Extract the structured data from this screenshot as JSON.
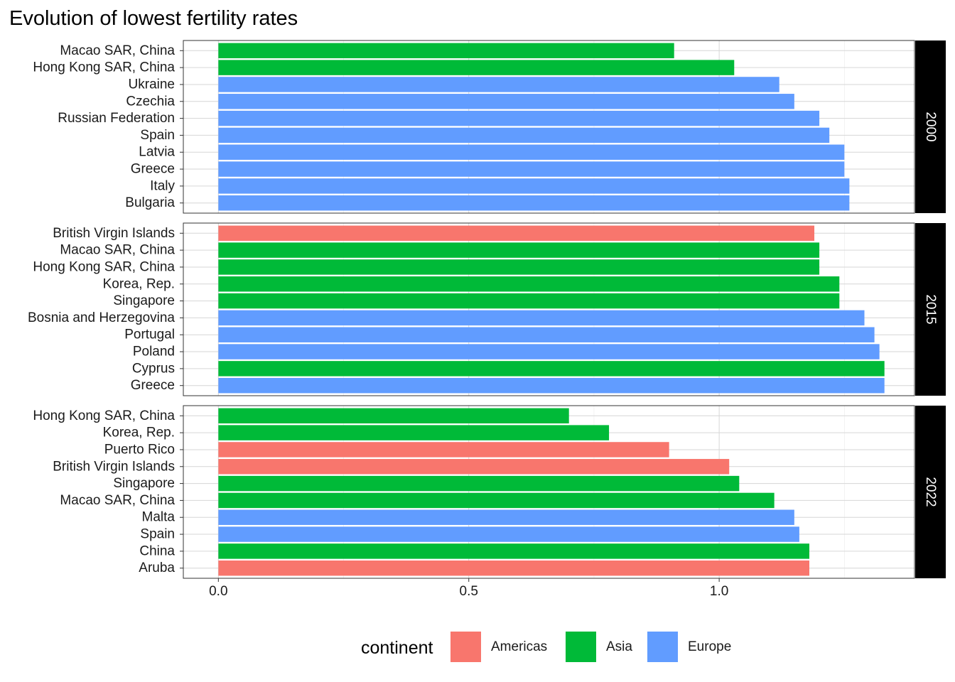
{
  "chart_data": {
    "type": "bar",
    "title": "Evolution of lowest fertility rates",
    "xlim": [
      -0.07,
      1.39
    ],
    "x_ticks": [
      0.0,
      0.5,
      1.0
    ],
    "x_tick_labels": [
      "0.0",
      "0.5",
      "1.0"
    ],
    "xlabel": "",
    "ylabel": "",
    "grid": true,
    "legend": {
      "title": "continent",
      "position": "bottom",
      "entries": [
        {
          "name": "Americas",
          "color": "#F8766D"
        },
        {
          "name": "Asia",
          "color": "#00BA38"
        },
        {
          "name": "Europe",
          "color": "#619CFF"
        }
      ]
    },
    "facets": [
      {
        "label": "2000",
        "bars": [
          {
            "country": "Macao SAR, China",
            "value": 0.91,
            "continent": "Asia"
          },
          {
            "country": "Hong Kong SAR, China",
            "value": 1.03,
            "continent": "Asia"
          },
          {
            "country": "Ukraine",
            "value": 1.12,
            "continent": "Europe"
          },
          {
            "country": "Czechia",
            "value": 1.15,
            "continent": "Europe"
          },
          {
            "country": "Russian Federation",
            "value": 1.2,
            "continent": "Europe"
          },
          {
            "country": "Spain",
            "value": 1.22,
            "continent": "Europe"
          },
          {
            "country": "Latvia",
            "value": 1.25,
            "continent": "Europe"
          },
          {
            "country": "Greece",
            "value": 1.25,
            "continent": "Europe"
          },
          {
            "country": "Italy",
            "value": 1.26,
            "continent": "Europe"
          },
          {
            "country": "Bulgaria",
            "value": 1.26,
            "continent": "Europe"
          }
        ]
      },
      {
        "label": "2015",
        "bars": [
          {
            "country": "British Virgin Islands",
            "value": 1.19,
            "continent": "Americas"
          },
          {
            "country": "Macao SAR, China",
            "value": 1.2,
            "continent": "Asia"
          },
          {
            "country": "Hong Kong SAR, China",
            "value": 1.2,
            "continent": "Asia"
          },
          {
            "country": "Korea, Rep.",
            "value": 1.24,
            "continent": "Asia"
          },
          {
            "country": "Singapore",
            "value": 1.24,
            "continent": "Asia"
          },
          {
            "country": "Bosnia and Herzegovina",
            "value": 1.29,
            "continent": "Europe"
          },
          {
            "country": "Portugal",
            "value": 1.31,
            "continent": "Europe"
          },
          {
            "country": "Poland",
            "value": 1.32,
            "continent": "Europe"
          },
          {
            "country": "Cyprus",
            "value": 1.33,
            "continent": "Asia"
          },
          {
            "country": "Greece",
            "value": 1.33,
            "continent": "Europe"
          }
        ]
      },
      {
        "label": "2022",
        "bars": [
          {
            "country": "Hong Kong SAR, China",
            "value": 0.7,
            "continent": "Asia"
          },
          {
            "country": "Korea, Rep.",
            "value": 0.78,
            "continent": "Asia"
          },
          {
            "country": "Puerto Rico",
            "value": 0.9,
            "continent": "Americas"
          },
          {
            "country": "British Virgin Islands",
            "value": 1.02,
            "continent": "Americas"
          },
          {
            "country": "Singapore",
            "value": 1.04,
            "continent": "Asia"
          },
          {
            "country": "Macao SAR, China",
            "value": 1.11,
            "continent": "Asia"
          },
          {
            "country": "Malta",
            "value": 1.15,
            "continent": "Europe"
          },
          {
            "country": "Spain",
            "value": 1.16,
            "continent": "Europe"
          },
          {
            "country": "China",
            "value": 1.18,
            "continent": "Asia"
          },
          {
            "country": "Aruba",
            "value": 1.18,
            "continent": "Americas"
          }
        ]
      }
    ]
  }
}
